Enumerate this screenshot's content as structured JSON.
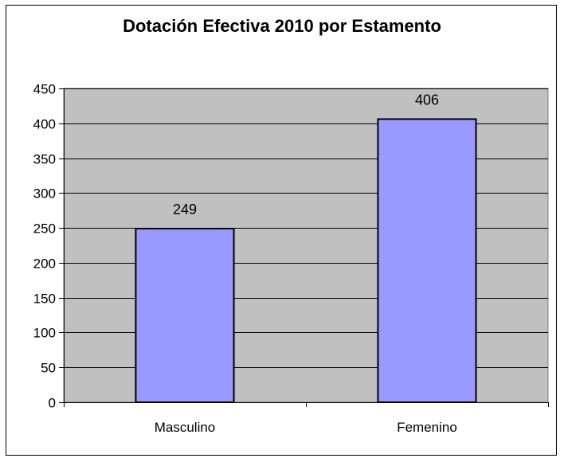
{
  "chart_data": {
    "type": "bar",
    "title": "Dotación Efectiva 2010 por Estamento",
    "xlabel": "",
    "ylabel": "",
    "categories": [
      "Masculino",
      "Femenino"
    ],
    "values": [
      249,
      406
    ],
    "data_labels": [
      "249",
      "406"
    ],
    "ylim": [
      0,
      450
    ],
    "yticks": [
      0,
      50,
      100,
      150,
      200,
      250,
      300,
      350,
      400,
      450
    ],
    "ytick_labels": [
      "0",
      "50",
      "100",
      "150",
      "200",
      "250",
      "300",
      "350",
      "400",
      "450"
    ],
    "grid": true,
    "legend": "none",
    "colors": {
      "bar_fill": "#9999FF",
      "bar_stroke": "#000000",
      "plot_background": "#C0C0C0",
      "gridline": "#000000"
    }
  }
}
